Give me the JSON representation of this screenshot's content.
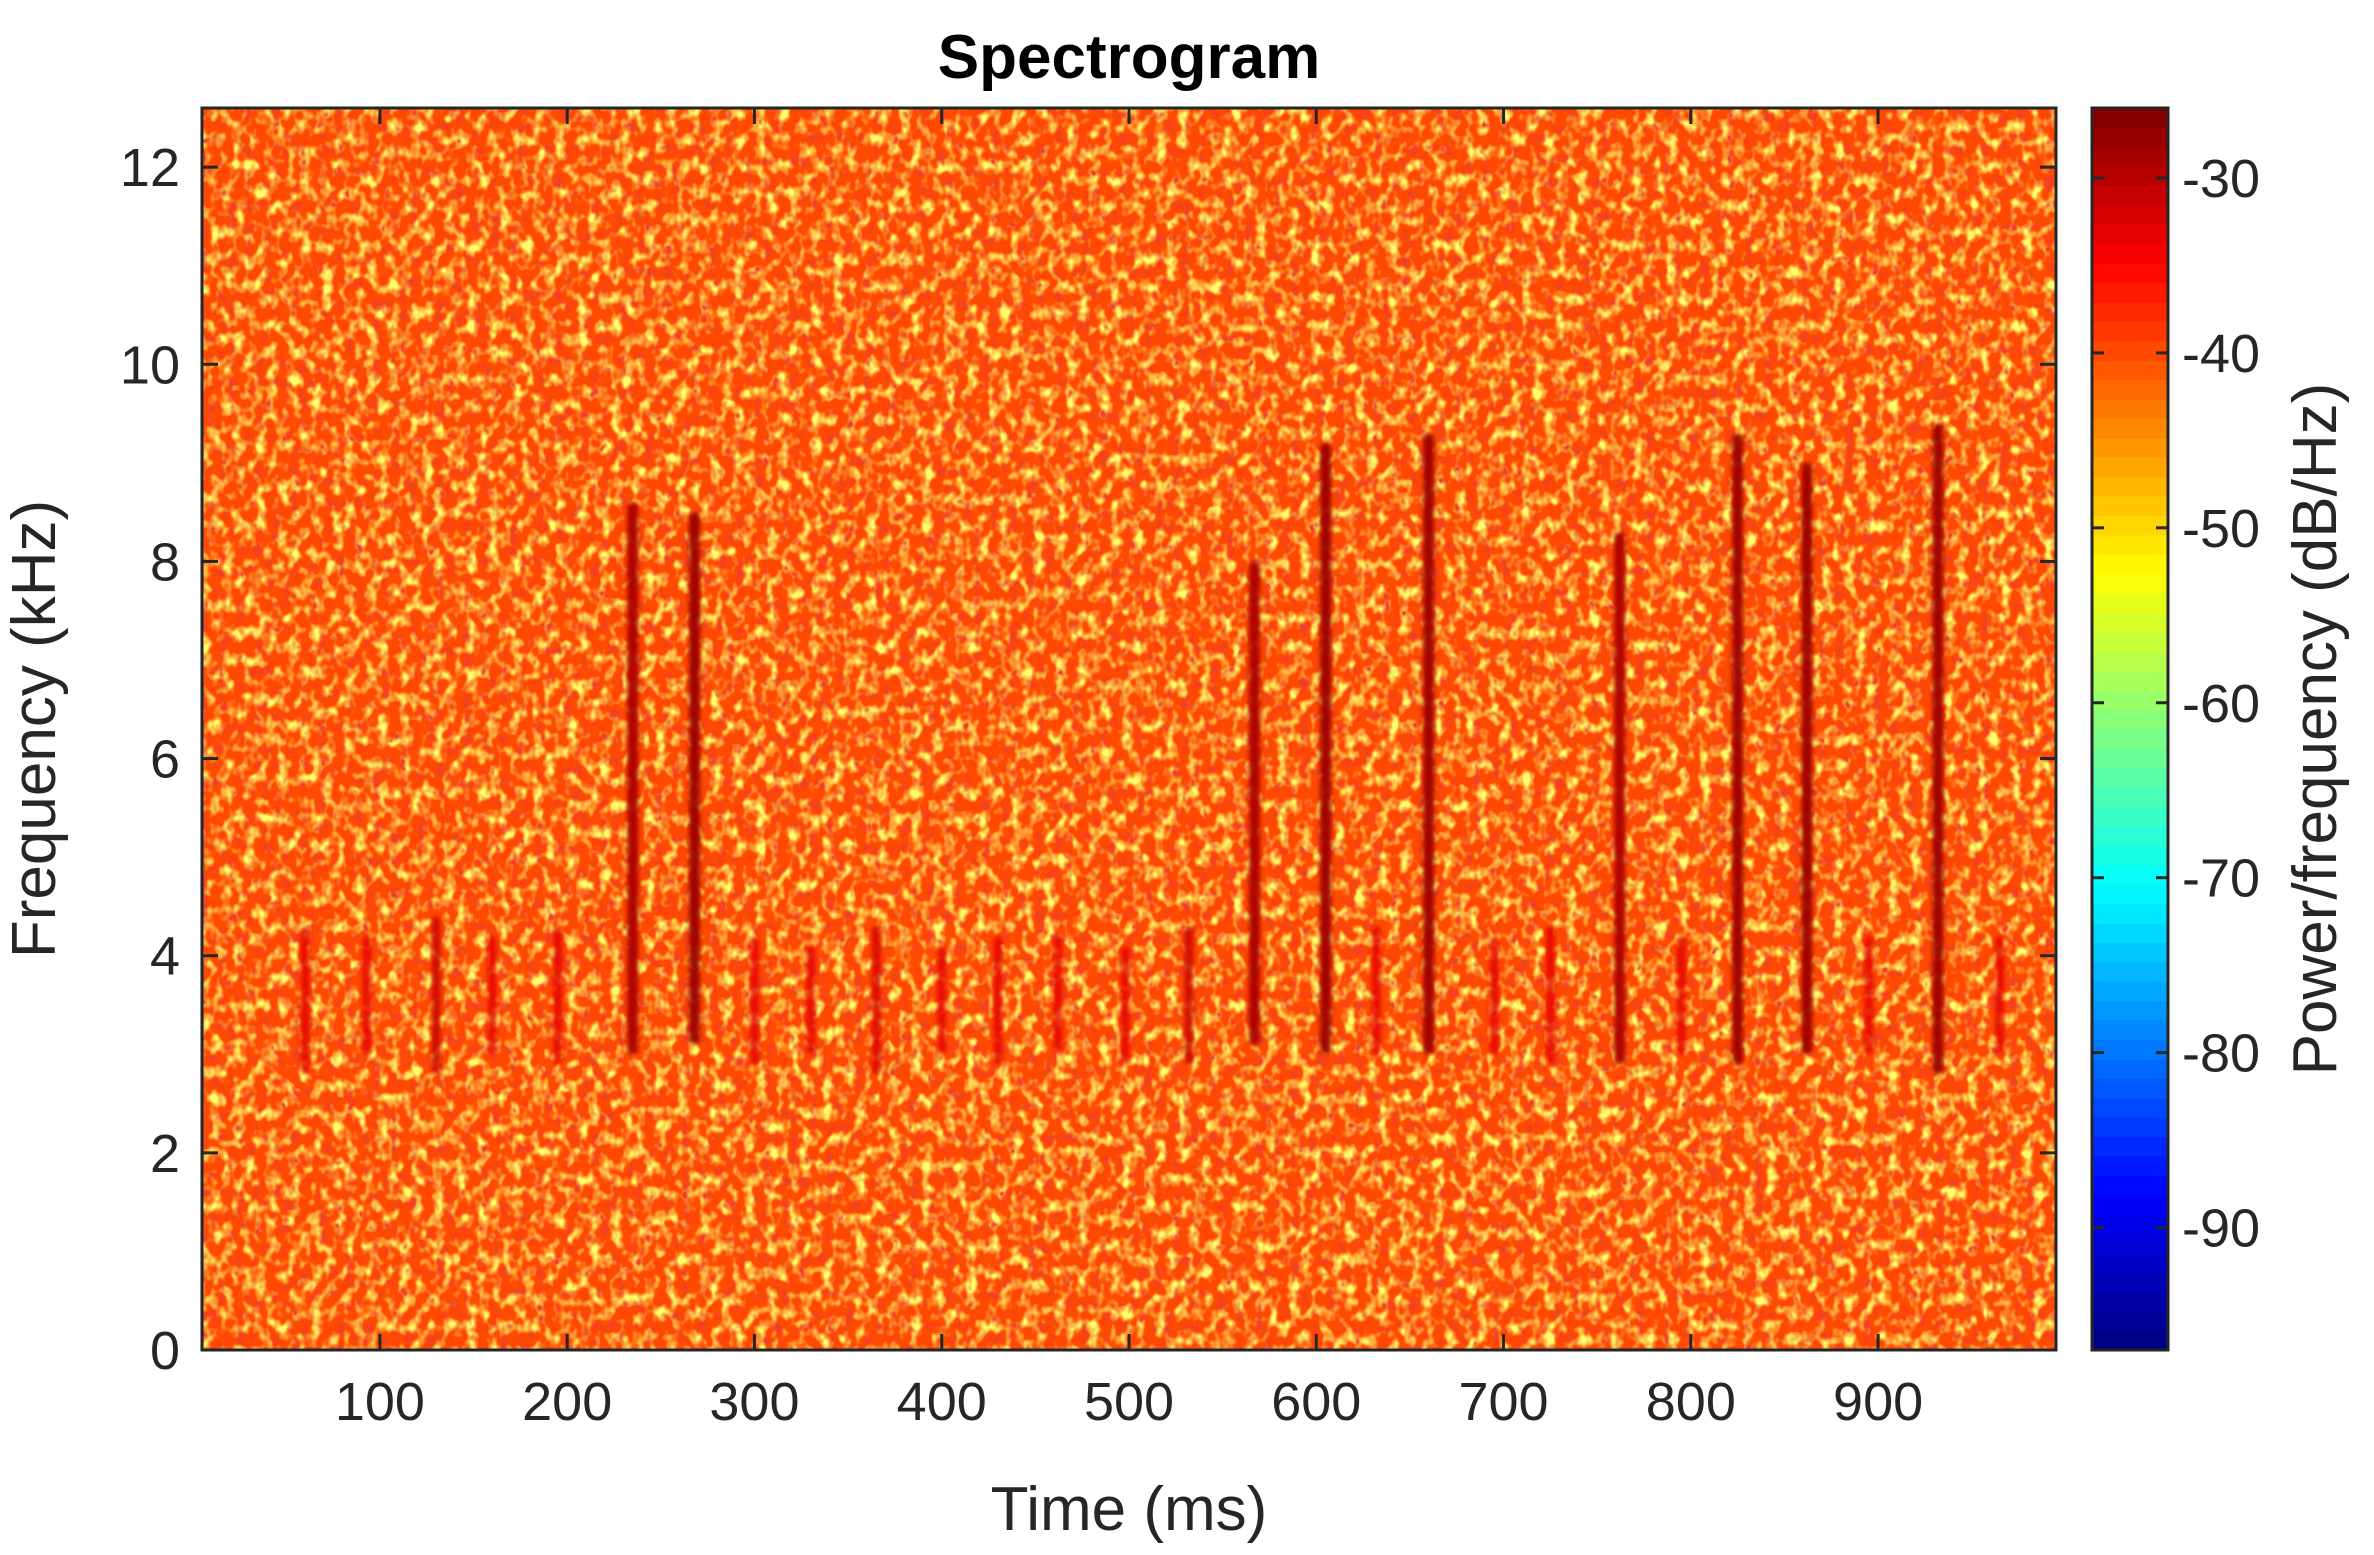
{
  "chart_data": {
    "type": "heatmap",
    "title": "Spectrogram",
    "xlabel": "Time (ms)",
    "ylabel": "Frequency (kHz)",
    "colorbar_label": "Power/frequency (dB/Hz)",
    "xlim": [
      5,
      995
    ],
    "ylim": [
      0,
      12.6
    ],
    "clim": [
      -97,
      -26
    ],
    "x_ticks": [
      100,
      200,
      300,
      400,
      500,
      600,
      700,
      800,
      900
    ],
    "x_tick_labels": [
      "100",
      "200",
      "300",
      "400",
      "500",
      "600",
      "700",
      "800",
      "900"
    ],
    "y_ticks": [
      0,
      2,
      4,
      6,
      8,
      10,
      12
    ],
    "y_tick_labels": [
      "0",
      "2",
      "4",
      "6",
      "8",
      "10",
      "12"
    ],
    "colorbar_ticks": [
      -90,
      -80,
      -70,
      -60,
      -50,
      -40,
      -30
    ],
    "colorbar_tick_labels": [
      "-90",
      "-80",
      "-70",
      "-60",
      "-50",
      "-40",
      "-30"
    ],
    "colormap": "jet",
    "background_power_db": -40,
    "grid": false,
    "events": [
      {
        "time_ms": 60,
        "f_low_khz": 2.8,
        "f_high_khz": 4.3,
        "power_db": -33
      },
      {
        "time_ms": 93,
        "f_low_khz": 3.0,
        "f_high_khz": 4.2,
        "power_db": -33
      },
      {
        "time_ms": 130,
        "f_low_khz": 2.8,
        "f_high_khz": 4.4,
        "power_db": -31
      },
      {
        "time_ms": 160,
        "f_low_khz": 3.0,
        "f_high_khz": 4.2,
        "power_db": -33
      },
      {
        "time_ms": 195,
        "f_low_khz": 2.9,
        "f_high_khz": 4.3,
        "power_db": -33
      },
      {
        "time_ms": 235,
        "f_low_khz": 3.0,
        "f_high_khz": 8.6,
        "power_db": -29
      },
      {
        "time_ms": 268,
        "f_low_khz": 3.1,
        "f_high_khz": 8.5,
        "power_db": -28
      },
      {
        "time_ms": 300,
        "f_low_khz": 2.9,
        "f_high_khz": 4.2,
        "power_db": -33
      },
      {
        "time_ms": 330,
        "f_low_khz": 3.0,
        "f_high_khz": 4.1,
        "power_db": -33
      },
      {
        "time_ms": 365,
        "f_low_khz": 2.8,
        "f_high_khz": 4.3,
        "power_db": -32
      },
      {
        "time_ms": 400,
        "f_low_khz": 3.0,
        "f_high_khz": 4.1,
        "power_db": -33
      },
      {
        "time_ms": 430,
        "f_low_khz": 2.9,
        "f_high_khz": 4.2,
        "power_db": -33
      },
      {
        "time_ms": 462,
        "f_low_khz": 3.0,
        "f_high_khz": 4.2,
        "power_db": -33
      },
      {
        "time_ms": 498,
        "f_low_khz": 2.9,
        "f_high_khz": 4.1,
        "power_db": -33
      },
      {
        "time_ms": 532,
        "f_low_khz": 2.9,
        "f_high_khz": 4.3,
        "power_db": -31
      },
      {
        "time_ms": 567,
        "f_low_khz": 3.1,
        "f_high_khz": 8.0,
        "power_db": -29
      },
      {
        "time_ms": 605,
        "f_low_khz": 3.0,
        "f_high_khz": 9.2,
        "power_db": -28
      },
      {
        "time_ms": 632,
        "f_low_khz": 3.0,
        "f_high_khz": 4.3,
        "power_db": -33
      },
      {
        "time_ms": 660,
        "f_low_khz": 3.0,
        "f_high_khz": 9.3,
        "power_db": -28
      },
      {
        "time_ms": 695,
        "f_low_khz": 3.0,
        "f_high_khz": 4.2,
        "power_db": -33
      },
      {
        "time_ms": 725,
        "f_low_khz": 2.9,
        "f_high_khz": 4.3,
        "power_db": -33
      },
      {
        "time_ms": 762,
        "f_low_khz": 2.9,
        "f_high_khz": 8.3,
        "power_db": -29
      },
      {
        "time_ms": 795,
        "f_low_khz": 3.0,
        "f_high_khz": 4.2,
        "power_db": -33
      },
      {
        "time_ms": 825,
        "f_low_khz": 2.9,
        "f_high_khz": 9.3,
        "power_db": -28
      },
      {
        "time_ms": 862,
        "f_low_khz": 3.0,
        "f_high_khz": 9.0,
        "power_db": -28
      },
      {
        "time_ms": 895,
        "f_low_khz": 3.0,
        "f_high_khz": 4.2,
        "power_db": -33
      },
      {
        "time_ms": 932,
        "f_low_khz": 2.8,
        "f_high_khz": 9.4,
        "power_db": -28
      },
      {
        "time_ms": 965,
        "f_low_khz": 3.0,
        "f_high_khz": 4.2,
        "power_db": -33
      }
    ]
  }
}
